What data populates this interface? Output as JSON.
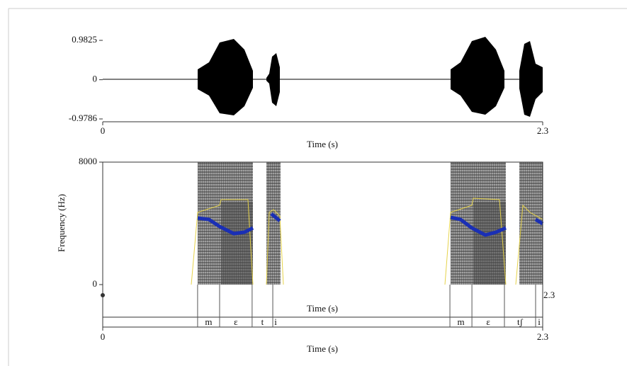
{
  "waveform": {
    "ylim": [
      -0.9786,
      0.9825
    ],
    "yticks": [
      0.9825,
      0,
      -0.9786
    ],
    "xlim": [
      0,
      2.3
    ],
    "xticks": [
      0,
      2.3
    ],
    "xlabel": "Time (s)"
  },
  "spectrogram": {
    "ylim": [
      0,
      8000
    ],
    "yticks": [
      8000,
      0
    ],
    "ylabel": "Frequency (Hz)"
  },
  "textgrid": {
    "axis_label": "Time (s)",
    "end_label": 2.3,
    "intervals": [
      {
        "label": "m",
        "start": 0.496,
        "end": 0.611
      },
      {
        "label": "ɛ",
        "start": 0.611,
        "end": 0.781
      },
      {
        "label": "t",
        "start": 0.781,
        "end": 0.889
      },
      {
        "label": "i",
        "start": 0.889,
        "end": 0.919
      },
      {
        "label": "m",
        "start": 1.815,
        "end": 1.93
      },
      {
        "label": "ɛ",
        "start": 1.93,
        "end": 2.1
      },
      {
        "label": "tʃ",
        "start": 2.1,
        "end": 2.263
      },
      {
        "label": "i",
        "start": 2.263,
        "end": 2.3
      }
    ]
  },
  "bottom_axis": {
    "xticks": [
      0,
      2.3
    ],
    "xlabel": "Time (s)"
  }
}
